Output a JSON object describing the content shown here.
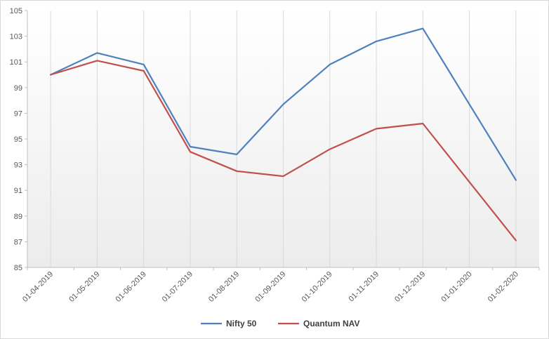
{
  "chart_data": {
    "type": "line",
    "title": "",
    "xlabel": "",
    "ylabel": "",
    "categories": [
      "01-04-2019",
      "01-05-2019",
      "01-06-2019",
      "01-07-2019",
      "01-08-2019",
      "01-09-2019",
      "01-10-2019",
      "01-11-2019",
      "01-12-2019",
      "01-01-2020",
      "01-02-2020"
    ],
    "ylim": [
      85,
      105
    ],
    "yticks": [
      85,
      87,
      89,
      91,
      93,
      95,
      97,
      99,
      101,
      103,
      105
    ],
    "grid": "vertical lines at each category",
    "legend_position": "bottom",
    "series": [
      {
        "name": "Nifty 50",
        "color": "#4f81bd",
        "values": [
          100,
          101.7,
          100.8,
          94.4,
          93.8,
          97.7,
          100.8,
          102.6,
          103.6,
          null,
          91.8
        ]
      },
      {
        "name": "Quantum NAV",
        "color": "#c0504d",
        "values": [
          100,
          101.1,
          100.3,
          94.0,
          92.5,
          92.1,
          94.2,
          95.8,
          96.2,
          null,
          87.1
        ]
      }
    ]
  }
}
